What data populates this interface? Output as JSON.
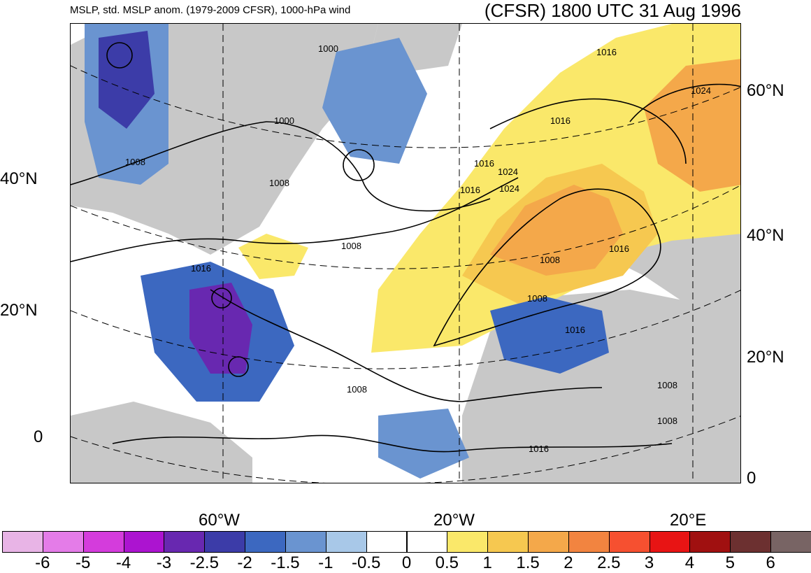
{
  "header": {
    "left_title": "MSLP, std. MSLP anom. (1979-2009 CFSR), 1000-hPa wind",
    "right_title": "(CFSR) 1800 UTC 31 Aug 1996"
  },
  "map": {
    "left_lat_labels": [
      "40°N",
      "20°N",
      "0"
    ],
    "right_lat_labels": [
      "60°N",
      "40°N",
      "20°N",
      "0"
    ],
    "lon_labels": [
      "60°W",
      "20°W",
      "20°E"
    ],
    "contour_labels": [
      "1000",
      "1000",
      "1008",
      "1008",
      "1008",
      "1016",
      "1016",
      "1024",
      "1016",
      "1016",
      "1024",
      "1016",
      "1016",
      "1008",
      "1016",
      "1008",
      "1008",
      "1008",
      "1016",
      "1008",
      "1024"
    ],
    "colors": {
      "land": "#c8c8c8",
      "negative_anomaly": "#3c68c0",
      "positive_anomaly": "#f6c850",
      "contour": "#000000"
    }
  },
  "colorbar": {
    "colors": [
      "#e8b4e6",
      "#e47ce8",
      "#d43cdc",
      "#ac14d0",
      "#6828b0",
      "#3c3ca8",
      "#3c68c0",
      "#6a94d0",
      "#a8c8e8",
      "#ffffff",
      "#ffffff",
      "#fae86a",
      "#f6c850",
      "#f4a84a",
      "#f28440",
      "#f65030",
      "#e81414",
      "#a01010",
      "#6c3030",
      "#786464"
    ],
    "tick_labels": [
      "-6",
      "-5",
      "-4",
      "-3",
      "-2.5",
      "-2",
      "-1.5",
      "-1",
      "-0.5",
      "0",
      "0.5",
      "1",
      "1.5",
      "2",
      "2.5",
      "3",
      "4",
      "5",
      "6"
    ]
  }
}
